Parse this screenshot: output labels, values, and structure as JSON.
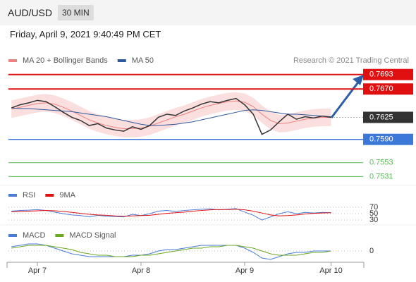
{
  "header": {
    "symbol": "AUD/USD",
    "timeframe": "30 MIN",
    "datetime": "Friday, April 9, 2021 9:40:49 PM CET"
  },
  "chart_data": [
    {
      "type": "line",
      "credit": "Research © 2021 Trading Central",
      "categories": [
        null,
        null,
        null,
        "Apr 7",
        null,
        null,
        null,
        null,
        null,
        null,
        null,
        null,
        null,
        null,
        null,
        "Apr 8",
        null,
        null,
        null,
        null,
        null,
        null,
        null,
        null,
        null,
        null,
        null,
        "Apr 9",
        null,
        null,
        null,
        null,
        null,
        null,
        null,
        null,
        null,
        "Apr 10"
      ],
      "values": [
        0.764,
        0.7645,
        0.7648,
        0.7652,
        0.765,
        0.7642,
        0.7633,
        0.7625,
        0.762,
        0.7612,
        0.7615,
        0.7608,
        0.7605,
        0.7603,
        0.761,
        0.7606,
        0.7612,
        0.7625,
        0.763,
        0.7628,
        0.7635,
        0.764,
        0.7646,
        0.765,
        0.7648,
        0.7652,
        0.7655,
        0.7645,
        0.763,
        0.7598,
        0.7605,
        0.7618,
        0.763,
        0.7622,
        0.7626,
        0.7624,
        0.7627,
        0.7625
      ],
      "color": "#333333",
      "series": [
        {
          "name": "MA 20 + Bollinger Bands",
          "color": "#f08080",
          "values": [
            0.7638,
            0.7641,
            0.7644,
            0.7647,
            0.7648,
            0.7646,
            0.7641,
            0.7635,
            0.7628,
            0.7621,
            0.7616,
            0.7612,
            0.7609,
            0.7607,
            0.7607,
            0.7608,
            0.7611,
            0.7616,
            0.7621,
            0.7626,
            0.763,
            0.7635,
            0.764,
            0.7644,
            0.7647,
            0.765,
            0.7651,
            0.7649,
            0.7642,
            0.763,
            0.762,
            0.7615,
            0.7616,
            0.7619,
            0.7622,
            0.7624,
            0.7625,
            0.7625
          ],
          "upper": [
            0.7652,
            0.7655,
            0.7658,
            0.7661,
            0.7662,
            0.766,
            0.7655,
            0.7649,
            0.7642,
            0.7635,
            0.763,
            0.7626,
            0.7623,
            0.7621,
            0.7621,
            0.7622,
            0.7625,
            0.763,
            0.7635,
            0.764,
            0.7644,
            0.7649,
            0.7654,
            0.7658,
            0.7661,
            0.7664,
            0.7665,
            0.7663,
            0.7656,
            0.7644,
            0.7634,
            0.7629,
            0.763,
            0.7633,
            0.7636,
            0.7638,
            0.7639,
            0.7639
          ],
          "lower": [
            0.7624,
            0.7627,
            0.763,
            0.7633,
            0.7634,
            0.7632,
            0.7627,
            0.7621,
            0.7614,
            0.7607,
            0.7602,
            0.7598,
            0.7595,
            0.7593,
            0.7593,
            0.7594,
            0.7597,
            0.7602,
            0.7607,
            0.7612,
            0.7616,
            0.7621,
            0.7626,
            0.763,
            0.7633,
            0.7636,
            0.7637,
            0.7635,
            0.7628,
            0.7616,
            0.7606,
            0.7601,
            0.7602,
            0.7605,
            0.7608,
            0.761,
            0.7611,
            0.7611
          ]
        },
        {
          "name": "MA 50",
          "color": "#2e5a9c",
          "values": [
            0.764,
            0.7639,
            0.7639,
            0.7638,
            0.7637,
            0.7636,
            0.7635,
            0.7634,
            0.7632,
            0.763,
            0.7628,
            0.7626,
            0.7623,
            0.762,
            0.7617,
            0.7614,
            0.7612,
            0.7612,
            0.7613,
            0.7614,
            0.7616,
            0.7618,
            0.7621,
            0.7624,
            0.7627,
            0.763,
            0.7633,
            0.7636,
            0.7637,
            0.7636,
            0.7634,
            0.7632,
            0.763,
            0.763,
            0.7629,
            0.7628,
            0.7627,
            0.7626
          ]
        }
      ],
      "levels": [
        {
          "value": 0.7693,
          "label": "0.7693",
          "color": "#e01010",
          "style": "box"
        },
        {
          "value": 0.767,
          "label": "0.7670",
          "color": "#e01010",
          "style": "box"
        },
        {
          "value": 0.7625,
          "label": "0.7625",
          "color": "#333333",
          "style": "current"
        },
        {
          "value": 0.759,
          "label": "0.7590",
          "color": "#3b78d8",
          "style": "box"
        },
        {
          "value": 0.7553,
          "label": "0.7553",
          "color": "#5cb85c",
          "style": "text"
        },
        {
          "value": 0.7531,
          "label": "0.7531",
          "color": "#5cb85c",
          "style": "text"
        }
      ],
      "ylim": [
        0.7518,
        0.7733
      ]
    },
    {
      "type": "line",
      "series": [
        {
          "name": "RSI",
          "color": "#4a7bd6",
          "values": [
            58,
            60,
            61,
            63,
            60,
            55,
            50,
            46,
            44,
            40,
            45,
            42,
            41,
            40,
            48,
            44,
            50,
            58,
            60,
            57,
            60,
            62,
            64,
            65,
            62,
            64,
            66,
            55,
            45,
            30,
            40,
            50,
            56,
            50,
            54,
            52,
            54,
            53
          ]
        },
        {
          "name": "9MA",
          "color": "#e01010",
          "values": [
            56,
            57,
            58,
            59,
            60,
            59,
            57,
            54,
            51,
            48,
            46,
            45,
            43,
            42,
            43,
            44,
            45,
            48,
            51,
            53,
            55,
            58,
            60,
            62,
            63,
            63,
            64,
            62,
            58,
            52,
            46,
            43,
            44,
            46,
            49,
            51,
            52,
            53
          ]
        }
      ],
      "ylim": [
        17,
        90
      ],
      "yticks": [
        30,
        50,
        70
      ]
    },
    {
      "type": "line",
      "series": [
        {
          "name": "MACD",
          "color": "#4a7bd6",
          "values": [
            3,
            4,
            5,
            5,
            4,
            2,
            0,
            -2,
            -3,
            -4,
            -4,
            -4,
            -4,
            -4,
            -3,
            -3,
            -2,
            0,
            1,
            1,
            2,
            3,
            4,
            4,
            4,
            4,
            4,
            2,
            -1,
            -5,
            -6,
            -4,
            -2,
            -1,
            -1,
            0,
            0,
            0
          ]
        },
        {
          "name": "MACD Signal",
          "color": "#6aa820",
          "values": [
            2,
            3,
            4,
            4,
            4,
            3,
            2,
            1,
            -1,
            -2,
            -3,
            -3,
            -4,
            -4,
            -4,
            -3,
            -3,
            -2,
            -1,
            0,
            1,
            2,
            2,
            3,
            3,
            4,
            4,
            3,
            2,
            0,
            -2,
            -3,
            -3,
            -3,
            -2,
            -1,
            -1,
            0
          ]
        }
      ],
      "ylim": [
        -8,
        8
      ],
      "yticks": [
        0
      ]
    }
  ]
}
